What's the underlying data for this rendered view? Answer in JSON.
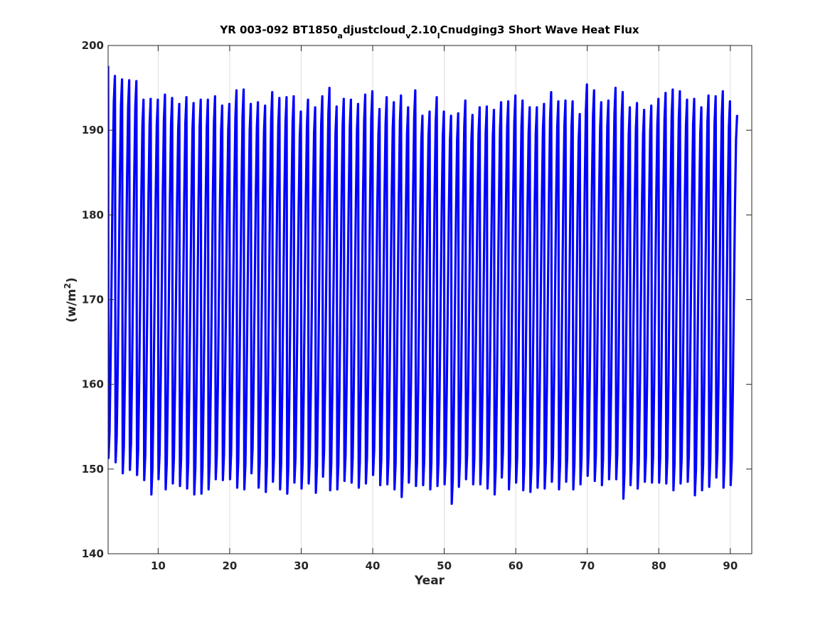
{
  "chart_data": {
    "type": "line",
    "title": {
      "p1": "YR 003-092 BT1850",
      "s1": "a",
      "p2": "djustcloud",
      "s2": "v",
      "p3": "2.10",
      "s3": "I",
      "p4": "Cnudging3 Short Wave Heat Flux"
    },
    "xlabel": "Year",
    "ylabel": {
      "prefix": "(w/m",
      "sup": "2",
      "suffix": ")"
    },
    "xlim": [
      3,
      93
    ],
    "ylim": [
      140,
      200
    ],
    "xticks": [
      10,
      20,
      30,
      40,
      50,
      60,
      70,
      80,
      90
    ],
    "yticks": [
      140,
      150,
      160,
      170,
      180,
      190,
      200
    ],
    "grid": "x-only",
    "line_color": "#0000ff",
    "series": [
      {
        "x_start": 3.0,
        "period": 1.0,
        "peak_offset": 0.45,
        "start_value": 197.6,
        "end_value": 191.8,
        "peaks": [
          196.4,
          196.0,
          195.9,
          195.8,
          193.6,
          193.7,
          193.6,
          194.2,
          193.8,
          193.1,
          193.9,
          193.2,
          193.6,
          193.6,
          194.0,
          192.9,
          193.1,
          194.7,
          194.8,
          193.1,
          193.3,
          192.9,
          194.5,
          193.8,
          193.9,
          194.0,
          192.2,
          193.6,
          192.7,
          194.0,
          195.0,
          192.8,
          193.7,
          193.6,
          193.1,
          194.2,
          194.6,
          192.5,
          193.9,
          193.3,
          194.1,
          192.7,
          194.7,
          191.7,
          192.2,
          193.9,
          192.2,
          191.7,
          192.0,
          193.5,
          191.8,
          192.7,
          192.8,
          192.4,
          193.3,
          193.4,
          194.1,
          193.5,
          192.7,
          192.7,
          193.1,
          194.5,
          193.4,
          193.5,
          193.4,
          191.9,
          195.4,
          194.7,
          193.3,
          193.5,
          195.0,
          194.5,
          192.7,
          193.2,
          192.4,
          192.9,
          193.7,
          194.4,
          194.8,
          194.6,
          193.6,
          193.7,
          192.7,
          194.1,
          194.0,
          194.6,
          193.4
        ],
        "troughs": [
          151.3,
          150.8,
          149.5,
          149.9,
          149.3,
          148.7,
          147.0,
          148.8,
          147.6,
          148.3,
          148.0,
          147.7,
          147.0,
          147.1,
          147.6,
          148.8,
          148.7,
          148.8,
          147.8,
          147.6,
          149.5,
          147.8,
          147.3,
          148.5,
          147.6,
          147.1,
          148.4,
          147.7,
          148.3,
          147.2,
          149.1,
          147.5,
          147.6,
          148.6,
          148.4,
          147.8,
          148.3,
          149.3,
          148.1,
          148.2,
          147.6,
          146.7,
          148.4,
          148.0,
          148.1,
          147.6,
          148.0,
          148.2,
          145.9,
          147.9,
          148.8,
          148.2,
          148.2,
          147.7,
          147.0,
          149.0,
          147.6,
          148.4,
          147.5,
          147.3,
          147.8,
          147.7,
          148.5,
          147.6,
          148.5,
          147.6,
          148.2,
          149.2,
          148.6,
          148.1,
          148.8,
          148.8,
          146.5,
          148.1,
          147.7,
          148.5,
          148.4,
          148.4,
          148.3,
          147.5,
          148.3,
          148.5,
          146.9,
          147.5,
          147.9,
          149.0,
          147.8,
          148.1,
          148.2,
          148.0
        ]
      }
    ]
  }
}
